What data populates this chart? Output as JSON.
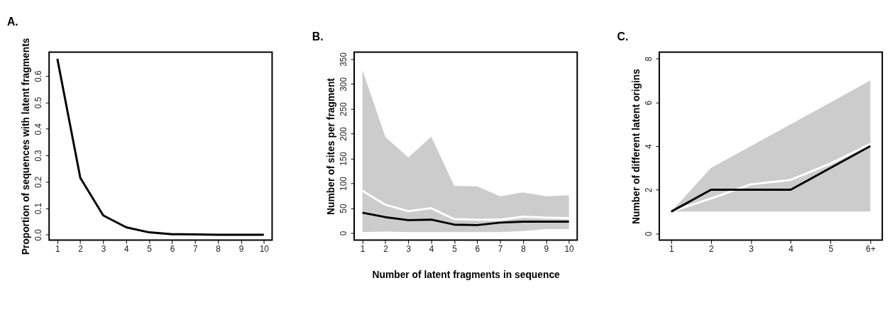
{
  "chart_data": [
    {
      "type": "line",
      "title": "A.",
      "ylabel": "Proportion of sequences with latent fragments",
      "x": [
        1,
        2,
        3,
        4,
        5,
        6,
        7,
        8,
        9,
        10
      ],
      "xlim": [
        0.64,
        10.36
      ],
      "xticks": [
        1,
        2,
        3,
        4,
        5,
        6,
        7,
        8,
        9,
        10
      ],
      "ylim": [
        -0.02,
        0.69
      ],
      "yticks": [
        {
          "value": 0,
          "label": "0.0"
        },
        0.1,
        0.2,
        0.3,
        0.4,
        0.5,
        0.6
      ],
      "grid": false,
      "legend": false,
      "series": [
        {
          "color": "#000000",
          "values": [
            0.665,
            0.215,
            0.073,
            0.028,
            0.009,
            0.002,
            0.001,
            0.0,
            0.0,
            0.0
          ]
        }
      ]
    },
    {
      "type": "line",
      "title": "B.",
      "xlabel": "Number of latent fragments in sequence",
      "ylabel": "Number of sites per fragment",
      "x": [
        1,
        2,
        3,
        4,
        5,
        6,
        7,
        8,
        9,
        10
      ],
      "xlim": [
        0.64,
        10.36
      ],
      "xticks": [
        1,
        2,
        3,
        4,
        5,
        6,
        7,
        8,
        9,
        10
      ],
      "ylim": [
        -14,
        364
      ],
      "yticks": [
        0,
        50,
        100,
        150,
        200,
        250,
        300,
        350
      ],
      "grid": false,
      "legend": false,
      "series": [
        {
          "color": "#ffffff",
          "values": [
            85,
            57,
            44,
            50,
            28,
            27,
            27,
            33,
            31,
            30
          ],
          "lower": [
            2,
            3,
            2,
            2,
            2,
            2,
            2,
            4,
            8,
            8
          ],
          "upper": [
            328,
            193,
            152,
            194,
            95,
            94,
            74,
            82,
            74,
            76
          ]
        },
        {
          "color": "#000000",
          "values": [
            41,
            32,
            26,
            27,
            17,
            16,
            21,
            23,
            23,
            23
          ]
        }
      ]
    },
    {
      "type": "line",
      "title": "C.",
      "ylabel": "Number of different latent origins",
      "categories": [
        "1",
        "2",
        "3",
        "4",
        "5",
        "6+"
      ],
      "ylim": [
        -0.3,
        8.3
      ],
      "yticks": [
        0,
        2,
        4,
        6,
        8
      ],
      "grid": false,
      "legend": false,
      "series": [
        {
          "color": "#ffffff",
          "values": [
            1,
            1.6,
            2.25,
            2.45,
            3.2,
            4.1
          ],
          "lower": [
            1,
            1,
            1,
            1,
            1,
            1
          ],
          "upper": [
            1,
            3,
            4,
            5,
            6,
            7
          ]
        },
        {
          "color": "#000000",
          "values": [
            1,
            2,
            2,
            2,
            3,
            4
          ]
        }
      ]
    }
  ]
}
